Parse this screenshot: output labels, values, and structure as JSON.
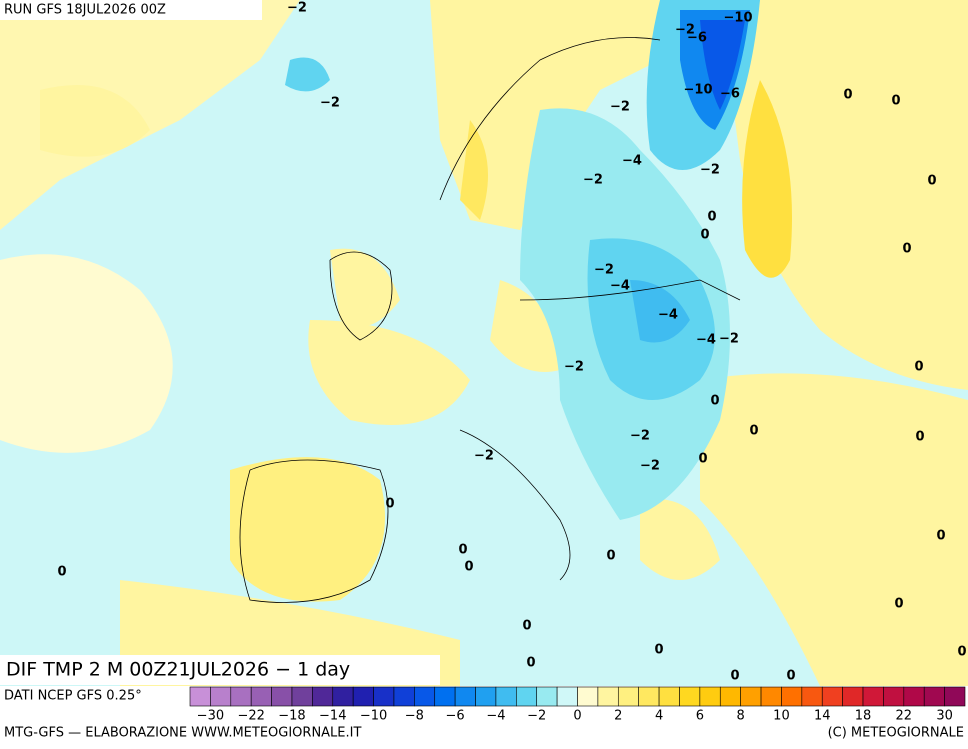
{
  "header": {
    "run": "RUN GFS 18JUL2026 00Z"
  },
  "map": {
    "title": "DIF TMP 2 M 00Z21JUL2026 − 1 day",
    "contour_labels": [
      "−2",
      "−10",
      "−2",
      "−6",
      "−2",
      "−10",
      "−6",
      "0",
      "0",
      "−2",
      "−4",
      "−2",
      "−2",
      "0",
      "0",
      "0",
      "0",
      "−2",
      "−4",
      "−4",
      "−4",
      "−2",
      "−2",
      "0",
      "0",
      "0",
      "0",
      "−2",
      "−2",
      "−2",
      "0",
      "0",
      "0",
      "0",
      "0",
      "0",
      "0",
      "0",
      "0",
      "0",
      "0",
      "0",
      "0",
      "0"
    ]
  },
  "colorbar": {
    "source": "DATI NCEP GFS 0.25°",
    "colors": [
      "#c890d8",
      "#b880cc",
      "#a870c0",
      "#9860b4",
      "#8850a8",
      "#70409c",
      "#502898",
      "#3020a0",
      "#2020b0",
      "#1830c8",
      "#1040d8",
      "#0858e8",
      "#0070f0",
      "#1088f0",
      "#20a0f0",
      "#40bcf0",
      "#60d4f0",
      "#98eaf0",
      "#d0f8f8",
      "#fffbd0",
      "#fff5a0",
      "#fff080",
      "#ffe860",
      "#ffe040",
      "#ffd820",
      "#ffcc10",
      "#ffb800",
      "#ffa000",
      "#ff8800",
      "#ff7000",
      "#f85810",
      "#f04020",
      "#e02828",
      "#d01838",
      "#c01040",
      "#b00848",
      "#a00850",
      "#900858"
    ],
    "tick_labels": [
      "−30",
      "−22",
      "−18",
      "−14",
      "−10",
      "−8",
      "−6",
      "−4",
      "−2",
      "0",
      "2",
      "4",
      "6",
      "8",
      "10",
      "14",
      "18",
      "22",
      "30"
    ]
  },
  "footer": {
    "left": "MTG-GFS — ELABORAZIONE WWW.METEOGIORNALE.IT",
    "right": "(C) METEOGIORNALE"
  }
}
